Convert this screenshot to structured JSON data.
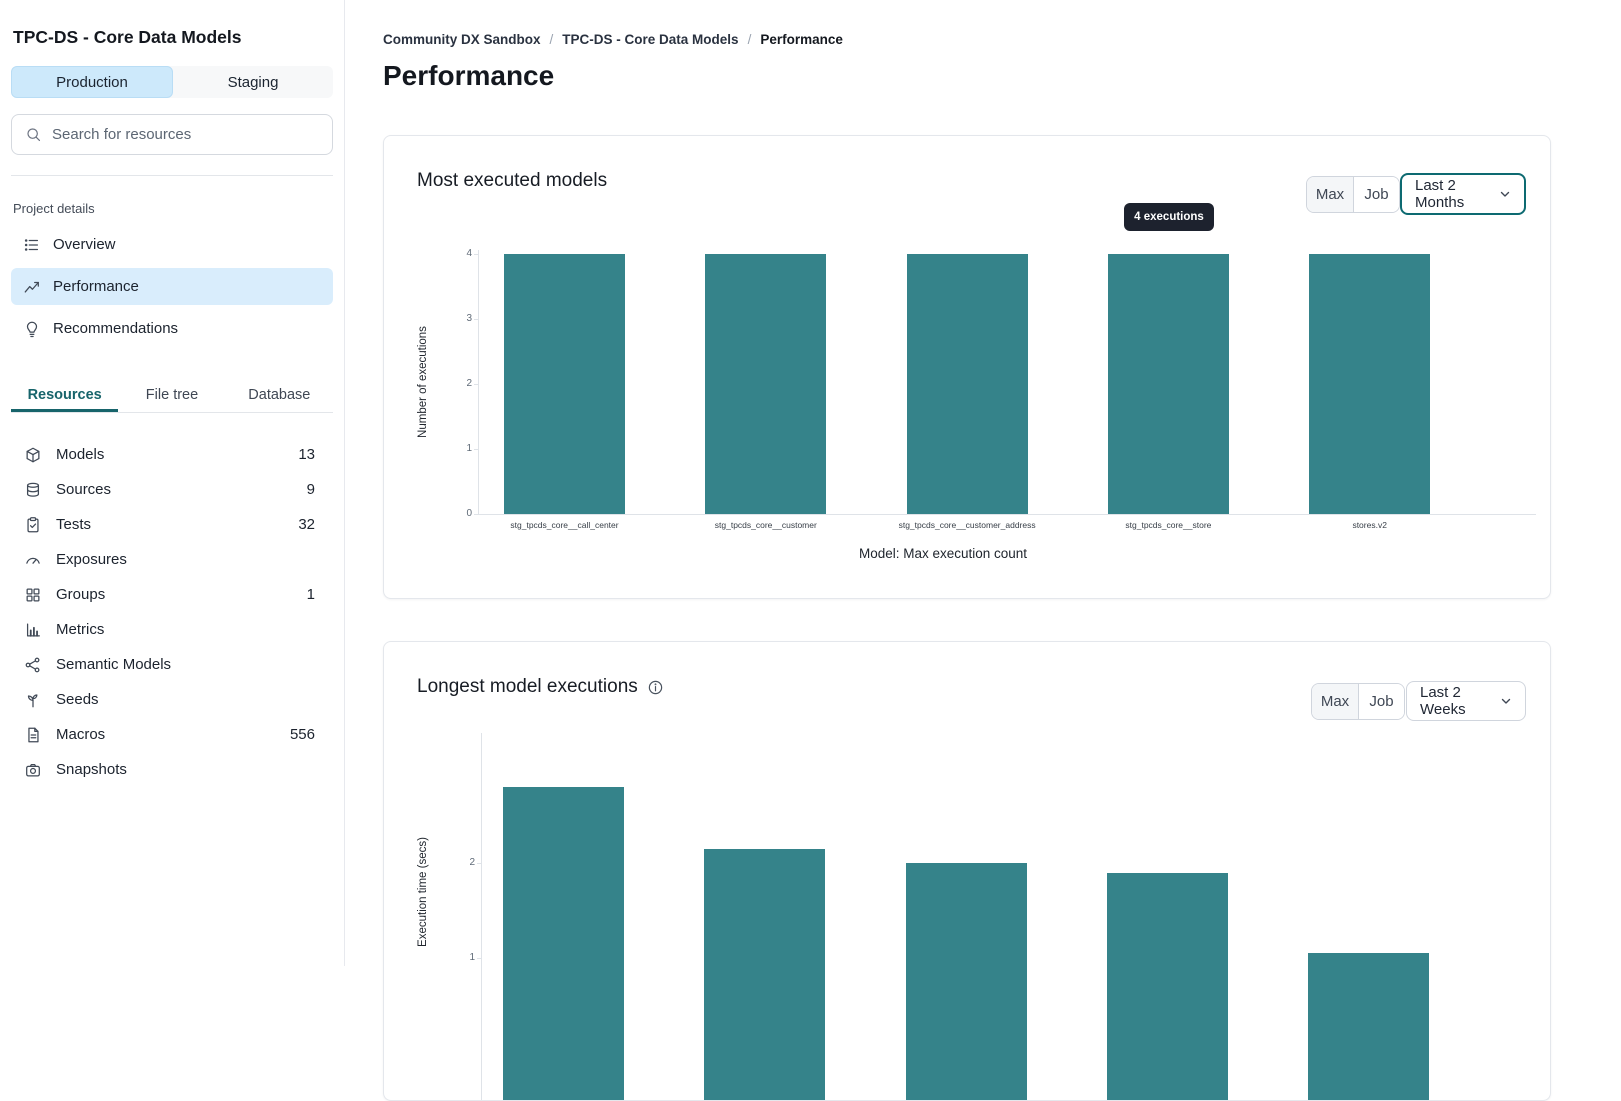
{
  "colors": {
    "bar_teal": "#35838a",
    "active_tab_teal": "#17646b",
    "active_nav_blue": "#d9edfc",
    "active_env_blue": "#cde9fb",
    "tooltip_bg": "#1d222e",
    "focused_dropdown_border": "#0d6a71"
  },
  "sidebar": {
    "title": "TPC-DS - Core Data Models",
    "env_tabs": [
      {
        "label": "Production",
        "active": true
      },
      {
        "label": "Staging",
        "active": false
      }
    ],
    "search_placeholder": "Search for resources",
    "section_label": "Project details",
    "nav": [
      {
        "label": "Overview",
        "icon": "list-icon",
        "active": false
      },
      {
        "label": "Performance",
        "icon": "line-chart-icon",
        "active": true
      },
      {
        "label": "Recommendations",
        "icon": "lightbulb-icon",
        "active": false
      }
    ],
    "resource_tabs": [
      {
        "label": "Resources",
        "active": true
      },
      {
        "label": "File tree",
        "active": false
      },
      {
        "label": "Database",
        "active": false
      }
    ],
    "resources": [
      {
        "label": "Models",
        "count": "13",
        "icon": "cube-icon"
      },
      {
        "label": "Sources",
        "count": "9",
        "icon": "database-icon"
      },
      {
        "label": "Tests",
        "count": "32",
        "icon": "clipboard-check-icon"
      },
      {
        "label": "Exposures",
        "count": "",
        "icon": "gauge-icon"
      },
      {
        "label": "Groups",
        "count": "1",
        "icon": "grid-icon"
      },
      {
        "label": "Metrics",
        "count": "",
        "icon": "bar-chart-icon"
      },
      {
        "label": "Semantic Models",
        "count": "",
        "icon": "network-icon"
      },
      {
        "label": "Seeds",
        "count": "",
        "icon": "sprout-icon"
      },
      {
        "label": "Macros",
        "count": "556",
        "icon": "document-icon"
      },
      {
        "label": "Snapshots",
        "count": "",
        "icon": "camera-icon"
      }
    ]
  },
  "breadcrumb": {
    "items": [
      "Community DX Sandbox",
      "TPC-DS - Core Data Models",
      "Performance"
    ],
    "separator": "/"
  },
  "page_title": "Performance",
  "cards": [
    {
      "title": "Most executed models",
      "toggle": {
        "options": [
          "Max",
          "Job"
        ],
        "selected": "Max"
      },
      "dropdown": {
        "value": "Last 2 Months",
        "focused": true
      },
      "tooltip": "4 executions"
    },
    {
      "title": "Longest model executions",
      "has_info_icon": true,
      "toggle": {
        "options": [
          "Max",
          "Job"
        ],
        "selected": "Max"
      },
      "dropdown": {
        "value": "Last 2 Weeks",
        "focused": false
      }
    }
  ],
  "chart_data": [
    {
      "type": "bar",
      "title": "Most executed models",
      "categories": [
        "stg_tpcds_core__call_center",
        "stg_tpcds_core__customer",
        "stg_tpcds_core__customer_address",
        "stg_tpcds_core__store",
        "stores.v2"
      ],
      "values": [
        4,
        4,
        4,
        4,
        4
      ],
      "xlabel": "Model: Max execution count",
      "ylabel": "Number of executions",
      "ylim": [
        0,
        4
      ],
      "yticks": [
        0,
        1,
        2,
        3,
        4
      ],
      "grid": false,
      "bar_color": "#35838a"
    },
    {
      "type": "bar",
      "title": "Longest model executions",
      "categories": [
        "",
        "",
        "",
        "",
        ""
      ],
      "values": [
        2.8,
        2.15,
        2.0,
        1.9,
        1.05
      ],
      "xlabel": "",
      "ylabel": "Execution time (secs)",
      "ylim": [
        0,
        3
      ],
      "yticks": [
        1,
        2
      ],
      "grid": false,
      "bar_color": "#35838a",
      "note": "bottom of chart cut off by viewport"
    }
  ]
}
